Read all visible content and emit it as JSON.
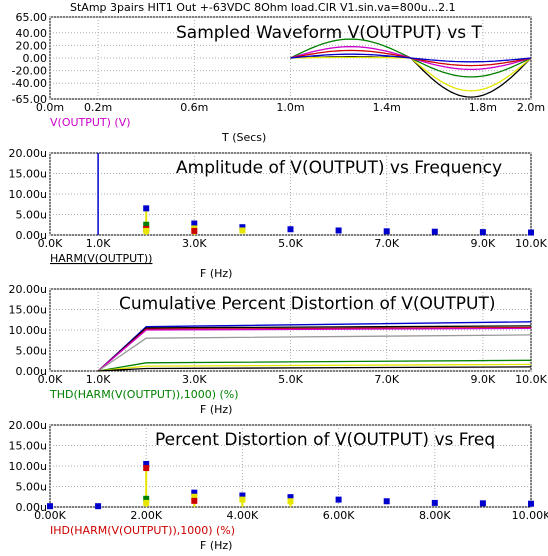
{
  "window_title": "StAmp 3pairs HIT1  Out +-63VDC 8Ohm load.CIR V1.sin.va=800u...2.1",
  "colors": {
    "axis": "#000000",
    "grid": "#b0b0b0",
    "blue": "#0000cc",
    "red": "#cc0000",
    "green": "#008000",
    "magenta": "#cc00cc",
    "yellow": "#e6e600",
    "black": "#000000",
    "gray": "#999999"
  },
  "chart_data": [
    {
      "type": "line",
      "title": "Sampled Waveform  V(OUTPUT) vs T",
      "xlabel": "T (Secs)",
      "legend": "V(OUTPUT) (V)",
      "x_ticks": [
        "0.0m",
        "0.2m",
        "0.6m",
        "1.0m",
        "1.4m",
        "1.8m",
        "2.0m"
      ],
      "y_ticks": [
        "65.00",
        "40.00",
        "20.00",
        "0.00",
        "-20.00",
        "-40.00",
        "-65.00"
      ],
      "xlim": [
        0,
        2.0
      ],
      "ylim": [
        -65,
        65
      ],
      "series": [
        {
          "color": "black",
          "x": [
            1.0,
            1.25,
            1.5,
            1.75,
            2.0
          ],
          "values": [
            0,
            2,
            0,
            -62,
            0
          ]
        },
        {
          "color": "yellow",
          "x": [
            1.0,
            1.25,
            1.5,
            1.75,
            2.0
          ],
          "values": [
            0,
            1,
            0,
            -52,
            0
          ]
        },
        {
          "color": "green",
          "x": [
            1.0,
            1.25,
            1.5,
            1.75,
            2.0
          ],
          "values": [
            0,
            30,
            0,
            -30,
            0
          ]
        },
        {
          "color": "magenta",
          "x": [
            1.0,
            1.25,
            1.5,
            1.75,
            2.0
          ],
          "values": [
            0,
            18,
            0,
            -18,
            0
          ]
        },
        {
          "color": "red",
          "x": [
            1.0,
            1.25,
            1.5,
            1.75,
            2.0
          ],
          "values": [
            0,
            12,
            0,
            -12,
            0
          ]
        },
        {
          "color": "blue",
          "x": [
            1.0,
            1.25,
            1.5,
            1.75,
            2.0
          ],
          "values": [
            0,
            6,
            0,
            -6,
            0
          ]
        }
      ]
    },
    {
      "type": "scatter",
      "title": "Amplitude of V(OUTPUT) vs Frequency",
      "xlabel": "F (Hz)",
      "legend": "HARM(V(OUTPUT))",
      "x_ticks": [
        "0.0K",
        "1.0K",
        "3.0K",
        "5.0K",
        "7.0K",
        "9.0K",
        "10.0K"
      ],
      "y_ticks": [
        "20.00u",
        "15.00u",
        "10.00u",
        "5.00u",
        "0.00u"
      ],
      "xlim": [
        0,
        10000
      ],
      "ylim": [
        0,
        20
      ],
      "fundamental_line_khz": 1.0,
      "points": [
        {
          "x": 2000,
          "values": [
            6.5,
            2.5,
            1.5,
            1.0
          ],
          "colors": [
            "blue",
            "green",
            "red",
            "yellow"
          ]
        },
        {
          "x": 3000,
          "values": [
            2.8,
            1.6,
            1.0
          ],
          "colors": [
            "blue",
            "yellow",
            "red"
          ]
        },
        {
          "x": 4000,
          "values": [
            1.9,
            1.1
          ],
          "colors": [
            "blue",
            "yellow"
          ]
        },
        {
          "x": 5000,
          "values": [
            1.4
          ],
          "colors": [
            "blue"
          ]
        },
        {
          "x": 6000,
          "values": [
            1.1
          ],
          "colors": [
            "blue"
          ]
        },
        {
          "x": 7000,
          "values": [
            0.9
          ],
          "colors": [
            "blue"
          ]
        },
        {
          "x": 8000,
          "values": [
            0.8
          ],
          "colors": [
            "blue"
          ]
        },
        {
          "x": 9000,
          "values": [
            0.7
          ],
          "colors": [
            "blue"
          ]
        },
        {
          "x": 10000,
          "values": [
            0.6
          ],
          "colors": [
            "blue"
          ]
        }
      ]
    },
    {
      "type": "line",
      "title": "Cumulative Percent Distortion of V(OUTPUT)",
      "xlabel": "F (Hz)",
      "legend": "THD(HARM(V(OUTPUT)),1000) (%)",
      "x_ticks": [
        "0.0K",
        "1.0K",
        "3.0K",
        "5.0K",
        "7.0K",
        "9.0K",
        "10.0K"
      ],
      "y_ticks": [
        "20.00u",
        "15.00u",
        "10.00u",
        "5.00u",
        "0.00u"
      ],
      "xlim": [
        0,
        10000
      ],
      "ylim": [
        0,
        20
      ],
      "series": [
        {
          "color": "blue",
          "x": [
            1000,
            2000,
            10000
          ],
          "values": [
            0,
            10.8,
            12.0
          ]
        },
        {
          "color": "black",
          "x": [
            1000,
            2000,
            10000
          ],
          "values": [
            0,
            10.5,
            11.0
          ]
        },
        {
          "color": "red",
          "x": [
            1000,
            2000,
            10000
          ],
          "values": [
            0,
            10.2,
            10.6
          ]
        },
        {
          "color": "magenta",
          "x": [
            1000,
            2000,
            10000
          ],
          "values": [
            0,
            10.0,
            10.4
          ]
        },
        {
          "color": "gray",
          "x": [
            1000,
            2000,
            10000
          ],
          "values": [
            0,
            8.0,
            8.8
          ]
        },
        {
          "color": "green",
          "x": [
            1000,
            2000,
            10000
          ],
          "values": [
            0,
            2.0,
            2.6
          ]
        },
        {
          "color": "yellow",
          "x": [
            1000,
            2000,
            10000
          ],
          "values": [
            0,
            1.2,
            1.6
          ]
        },
        {
          "color": "black",
          "x": [
            1000,
            2000,
            10000
          ],
          "values": [
            0,
            0.6,
            1.0
          ]
        }
      ]
    },
    {
      "type": "scatter",
      "title": "Percent Distortion of V(OUTPUT) vs Freq",
      "xlabel": "F (Hz)",
      "legend": "IHD(HARM(V(OUTPUT)),1000) (%)",
      "x_ticks": [
        "0.00K",
        "2.00K",
        "4.00K",
        "6.00K",
        "8.00K",
        "10.00K"
      ],
      "y_ticks": [
        "20.00u",
        "15.00u",
        "10.00u",
        "5.00u",
        "0.00u"
      ],
      "xlim": [
        0,
        10000
      ],
      "ylim": [
        0,
        20
      ],
      "points": [
        {
          "x": 0,
          "values": [
            0.2
          ],
          "colors": [
            "blue"
          ]
        },
        {
          "x": 1000,
          "values": [
            0.2
          ],
          "colors": [
            "blue"
          ]
        },
        {
          "x": 2000,
          "values": [
            10.5,
            9.5,
            2.0,
            1.0
          ],
          "colors": [
            "blue",
            "red",
            "green",
            "yellow"
          ]
        },
        {
          "x": 3000,
          "values": [
            3.5,
            2.5,
            1.5
          ],
          "colors": [
            "blue",
            "yellow",
            "red"
          ]
        },
        {
          "x": 4000,
          "values": [
            2.8,
            1.8
          ],
          "colors": [
            "blue",
            "yellow"
          ]
        },
        {
          "x": 5000,
          "values": [
            2.4,
            1.4
          ],
          "colors": [
            "blue",
            "yellow"
          ]
        },
        {
          "x": 6000,
          "values": [
            1.8
          ],
          "colors": [
            "blue"
          ]
        },
        {
          "x": 7000,
          "values": [
            1.4
          ],
          "colors": [
            "blue"
          ]
        },
        {
          "x": 8000,
          "values": [
            1.0
          ],
          "colors": [
            "blue"
          ]
        },
        {
          "x": 9000,
          "values": [
            0.9
          ],
          "colors": [
            "blue"
          ]
        },
        {
          "x": 10000,
          "values": [
            0.8
          ],
          "colors": [
            "blue"
          ]
        }
      ]
    }
  ]
}
